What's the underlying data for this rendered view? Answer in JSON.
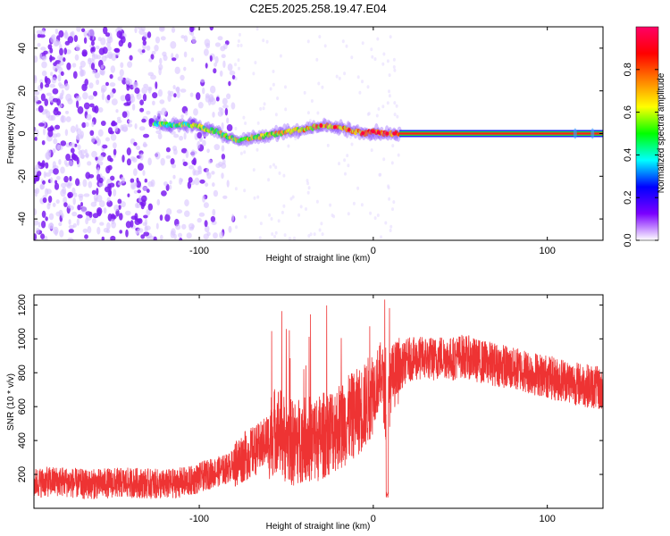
{
  "title": "C2E5.2025.258.19.47.E04",
  "chart_data": [
    {
      "type": "heatmap",
      "panel": "spectrogram",
      "xlabel": "Height of straight line (km)",
      "ylabel": "Frequency (Hz)",
      "xlim": [
        -195,
        132
      ],
      "ylim": [
        -50,
        50
      ],
      "xticks": [
        -100,
        0,
        100
      ],
      "xtick_labels": [
        "-100",
        "0",
        "100"
      ],
      "yticks": [
        -40,
        -20,
        0,
        20,
        40
      ],
      "ytick_labels": [
        "-40",
        "-20",
        "0",
        "20",
        "40"
      ],
      "noise_region_x": [
        -195,
        -80
      ],
      "signal_trace": {
        "x": [
          -126,
          -118,
          -110,
          -102,
          -96,
          -90,
          -86,
          -82,
          -78,
          -70,
          -62,
          -55,
          -48,
          -40,
          -34,
          -28,
          -22,
          -16,
          -10,
          -5,
          0,
          5,
          10,
          15
        ],
        "y": [
          5,
          4,
          4,
          4,
          2,
          1,
          -1,
          -2,
          -3,
          -2,
          -1,
          0,
          1,
          2,
          3,
          4,
          3,
          2,
          1,
          0,
          1,
          0,
          0,
          0
        ]
      },
      "constant_line": {
        "x_start": 15,
        "x_end": 132,
        "y": 0
      },
      "colorbar": {
        "label": "Normalized spectral amplitude",
        "range": [
          0,
          1
        ],
        "ticks": [
          0.0,
          0.2,
          0.4,
          0.6,
          0.8
        ],
        "tick_labels": [
          "0.0",
          "0.2",
          "0.4",
          "0.6",
          "0.8"
        ],
        "colors": [
          "#ffffff",
          "#7b00ff",
          "#0000ff",
          "#00ffff",
          "#00ff00",
          "#ffff00",
          "#ff8000",
          "#ff0000",
          "#ff0066"
        ]
      }
    },
    {
      "type": "line",
      "panel": "snr",
      "xlabel": "Height of straight line (km)",
      "ylabel": "SNR (10 * v/v)",
      "xlim": [
        -195,
        132
      ],
      "ylim": [
        0,
        1260
      ],
      "xticks": [
        -100,
        0,
        100
      ],
      "xtick_labels": [
        "-100",
        "0",
        "100"
      ],
      "yticks": [
        200,
        400,
        600,
        800,
        1000,
        1200
      ],
      "ytick_labels": [
        "200",
        "400",
        "600",
        "800",
        "1000",
        "1200"
      ],
      "series": [
        {
          "name": "SNR",
          "color": "#ee3333",
          "x": [
            -195,
            -180,
            -165,
            -150,
            -135,
            -120,
            -105,
            -95,
            -85,
            -80,
            -75,
            -70,
            -65,
            -60,
            -55,
            -50,
            -45,
            -40,
            -35,
            -30,
            -25,
            -20,
            -15,
            -10,
            -5,
            0,
            5,
            8,
            10,
            15,
            20,
            25,
            30,
            35,
            40,
            45,
            50,
            55,
            60,
            65,
            70,
            75,
            80,
            85,
            90,
            95,
            100,
            105,
            110,
            115,
            120,
            125,
            132
          ],
          "y": [
            150,
            160,
            140,
            150,
            150,
            140,
            160,
            200,
            230,
            260,
            300,
            330,
            360,
            420,
            480,
            400,
            380,
            420,
            400,
            420,
            460,
            480,
            520,
            560,
            600,
            700,
            800,
            500,
            760,
            820,
            880,
            880,
            890,
            880,
            900,
            880,
            900,
            890,
            870,
            860,
            850,
            840,
            820,
            820,
            800,
            790,
            780,
            760,
            760,
            740,
            730,
            720,
            700
          ]
        }
      ]
    }
  ]
}
